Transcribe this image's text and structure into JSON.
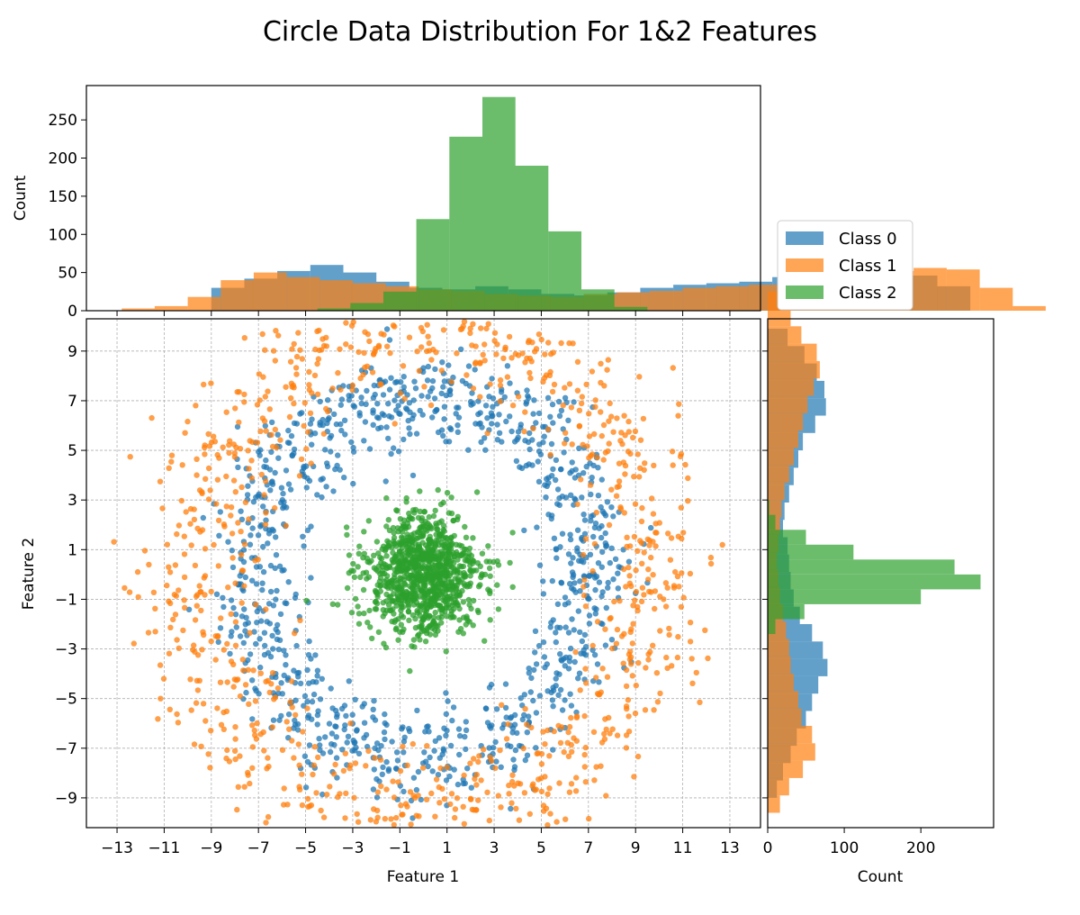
{
  "chart_data": {
    "type": "scatter",
    "title": "Circle Data Distribution For 1&2 Features",
    "colors": {
      "class0": "#1f77b4",
      "class1": "#ff7f0e",
      "class2": "#2ca02c"
    },
    "legend": {
      "placement": "right of top histogram, above right histogram",
      "entries": [
        "Class 0",
        "Class 1",
        "Class 2"
      ]
    },
    "scatter": {
      "xlabel": "Feature 1",
      "ylabel": "Feature 2",
      "xlim": [
        -14.3,
        14.3
      ],
      "ylim": [
        -10.2,
        10.3
      ],
      "grid": true,
      "xticks": [
        -13,
        -11,
        -9,
        -7,
        -5,
        -3,
        -1,
        1,
        3,
        5,
        7,
        9,
        11,
        13
      ],
      "xtick_labels": [
        "−13",
        "−11",
        "−9",
        "−7",
        "−5",
        "−3",
        "−1",
        "1",
        "3",
        "5",
        "7",
        "9",
        "11",
        "13"
      ],
      "yticks": [
        -9,
        -7,
        -5,
        -3,
        -1,
        1,
        3,
        5,
        7,
        9
      ],
      "ytick_labels": [
        "−9",
        "−7",
        "−5",
        "−3",
        "−1",
        "1",
        "3",
        "5",
        "7",
        "9"
      ],
      "series": [
        {
          "name": "Class 0",
          "distribution": "ring",
          "center": [
            0,
            0
          ],
          "radius": 7.3,
          "radius_sd": 1.0,
          "count": 1000
        },
        {
          "name": "Class 1",
          "distribution": "ring",
          "center": [
            0,
            0
          ],
          "radius": 9.8,
          "radius_sd": 1.3,
          "count": 1000
        },
        {
          "name": "Class 2",
          "distribution": "gaussian",
          "center": [
            0,
            0
          ],
          "sd": 1.2,
          "count": 1000
        }
      ]
    },
    "hist_x": {
      "ylabel": "Count",
      "ylim": [
        0,
        295
      ],
      "yticks": [
        0,
        50,
        100,
        150,
        200,
        250
      ],
      "series": [
        {
          "name": "Class 0",
          "x0": -9.0,
          "bin_width": 1.4,
          "counts": [
            30,
            42,
            52,
            60,
            50,
            38,
            30,
            28,
            32,
            28,
            22,
            20,
            24,
            30,
            34,
            36,
            38,
            44,
            42,
            50,
            58,
            46,
            32
          ]
        },
        {
          "name": "Class 1",
          "x0": -12.8,
          "bin_width": 1.4,
          "counts": [
            3,
            6,
            18,
            40,
            50,
            44,
            40,
            36,
            32,
            28,
            26,
            22,
            20,
            18,
            22,
            24,
            26,
            30,
            32,
            34,
            36,
            40,
            44,
            52,
            56,
            54,
            30,
            6
          ]
        },
        {
          "name": "Class 2",
          "x0": -4.5,
          "bin_width": 1.4,
          "counts": [
            3,
            10,
            25,
            120,
            228,
            280,
            190,
            104,
            28,
            5
          ]
        }
      ]
    },
    "hist_y": {
      "xlabel": "Count",
      "xlim": [
        0,
        295
      ],
      "xticks": [
        0,
        100,
        200
      ],
      "series": [
        {
          "name": "Class 0",
          "y0": -9.0,
          "bin_width": 0.7,
          "counts": [
            12,
            20,
            30,
            38,
            50,
            58,
            66,
            78,
            72,
            58,
            42,
            34,
            30,
            28,
            26,
            20,
            22,
            28,
            34,
            40,
            46,
            62,
            76,
            74,
            64,
            48,
            26
          ]
        },
        {
          "name": "Class 1",
          "y0": -9.6,
          "bin_width": 0.7,
          "counts": [
            16,
            28,
            46,
            62,
            58,
            44,
            40,
            34,
            30,
            28,
            24,
            20,
            16,
            14,
            12,
            14,
            16,
            18,
            22,
            28,
            34,
            40,
            46,
            52,
            60,
            68,
            64,
            44,
            30,
            18
          ]
        },
        {
          "name": "Class 2",
          "y0": -3.0,
          "bin_width": 0.6,
          "counts": [
            1,
            10,
            48,
            200,
            278,
            244,
            112,
            50,
            10,
            2
          ]
        }
      ]
    }
  }
}
